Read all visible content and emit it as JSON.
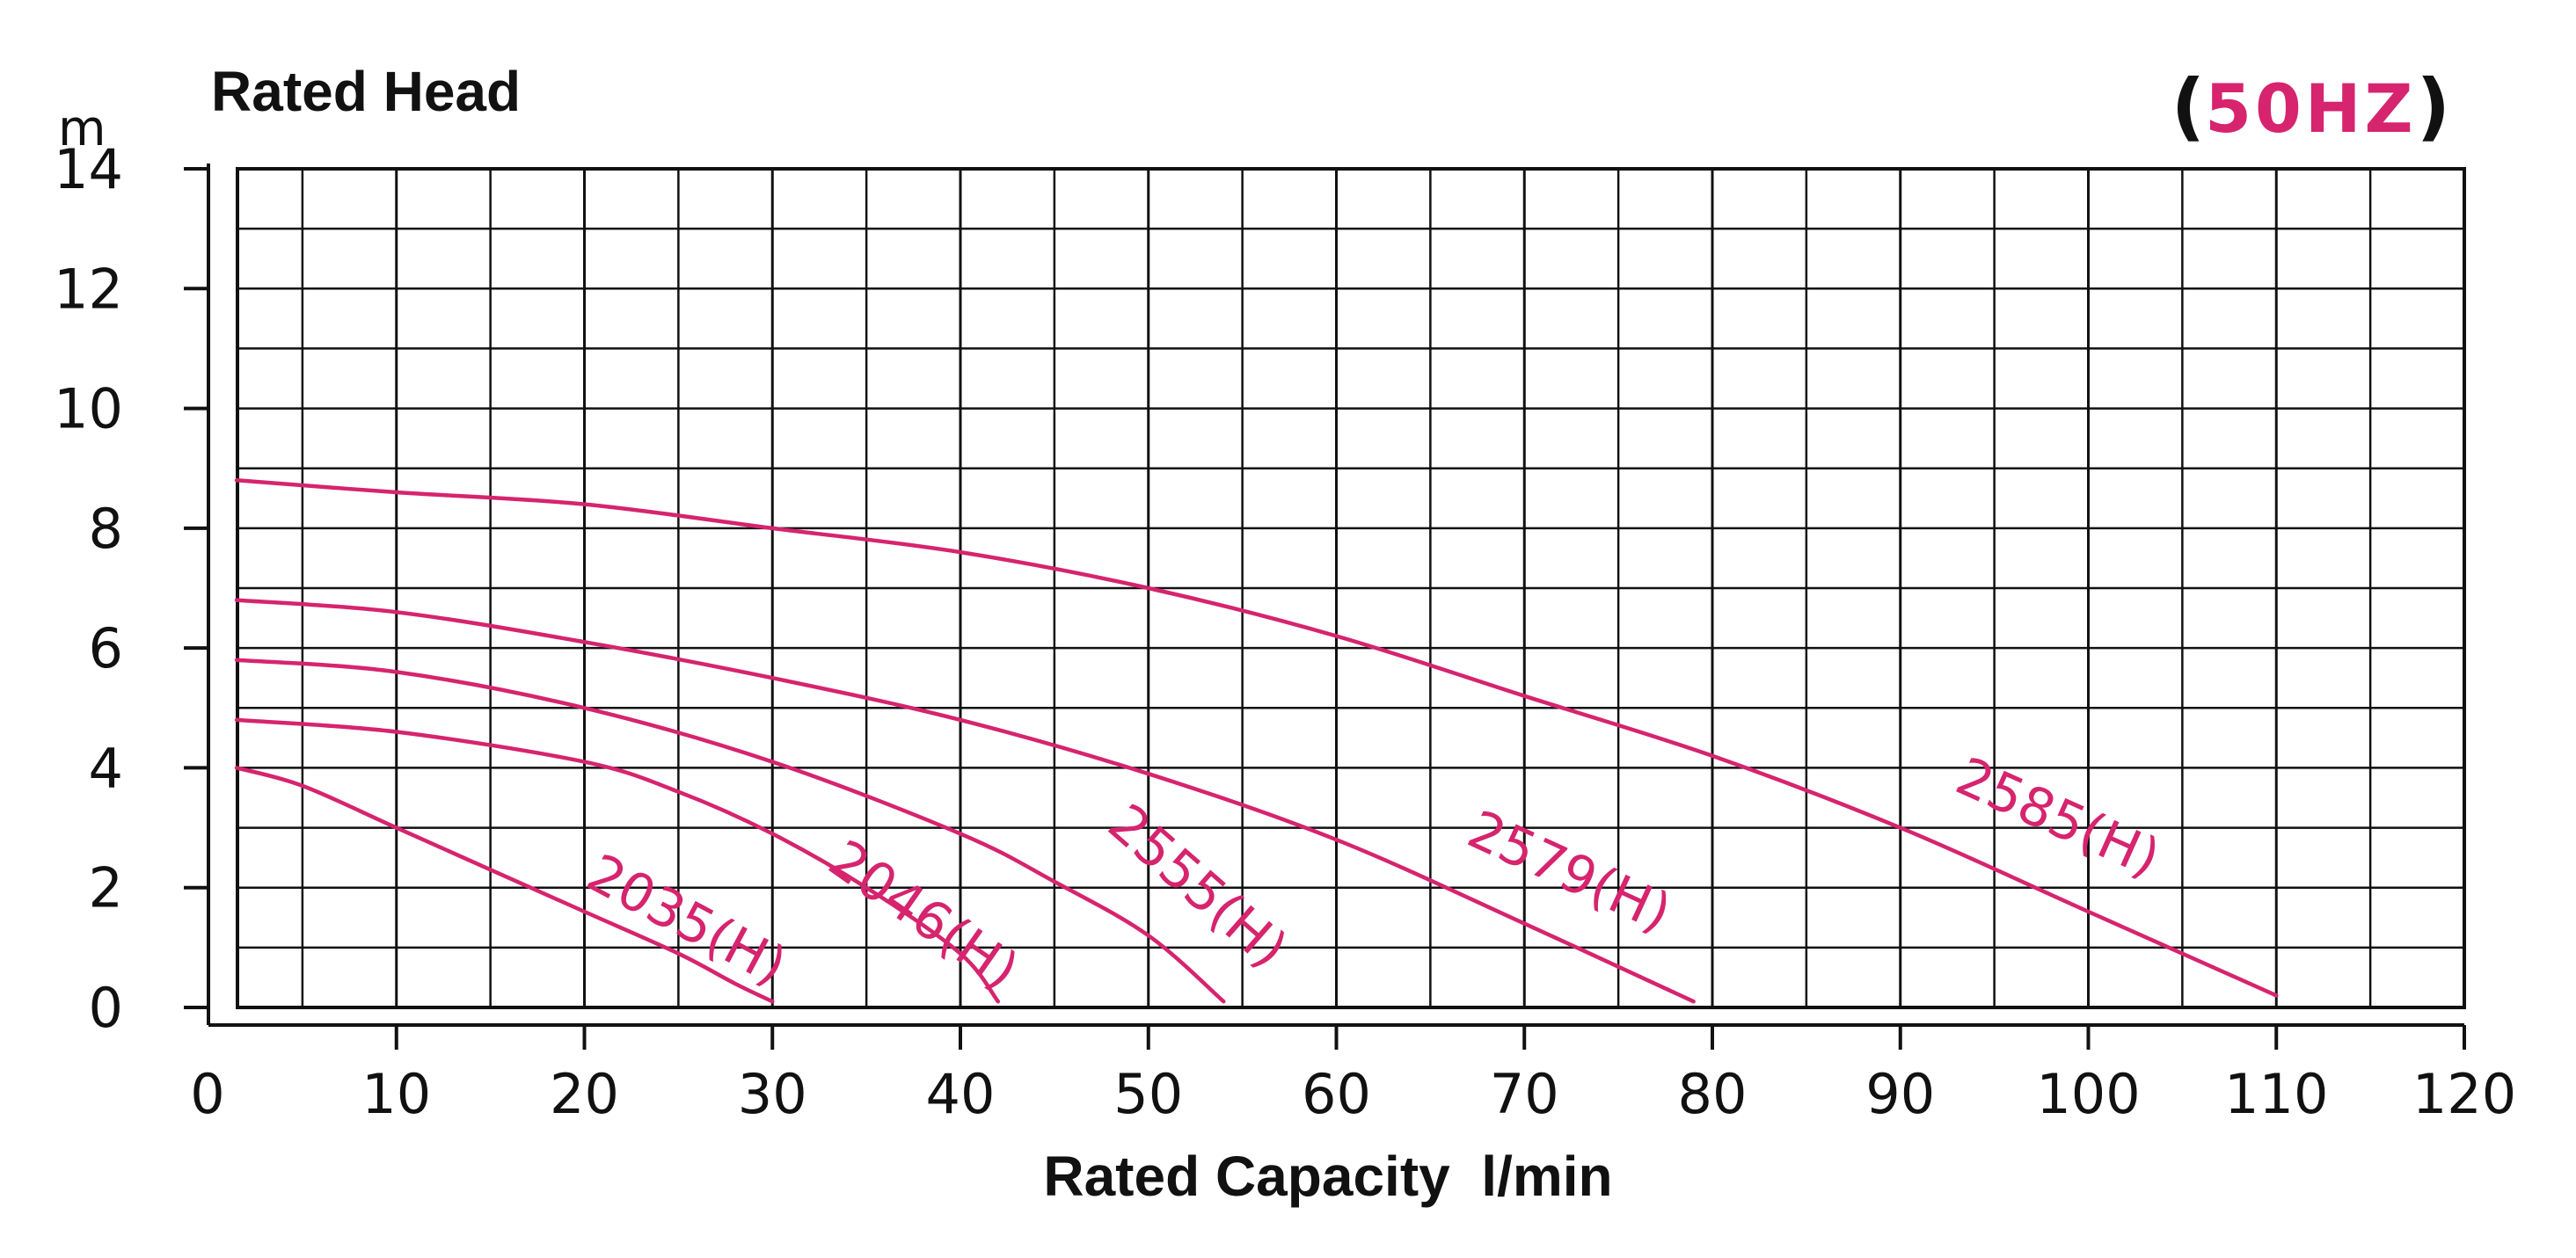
{
  "chart_data": {
    "type": "line",
    "ylabel": "Rated Head",
    "yunit": "m",
    "xlabel": "Rated Capacity  l/min",
    "annotation": {
      "paren_open": "(",
      "freq": "50HZ",
      "paren_close": ")"
    },
    "xlim": [
      0,
      120
    ],
    "ylim": [
      0,
      14
    ],
    "x_ticks": [
      0,
      10,
      20,
      30,
      40,
      50,
      60,
      70,
      80,
      90,
      100,
      110,
      120
    ],
    "y_ticks": [
      0,
      2,
      4,
      6,
      8,
      10,
      12,
      14
    ],
    "grid": true,
    "curve_color": "#d6246e",
    "grid_color": "#111111",
    "series": [
      {
        "name": "2035(H)",
        "x": [
          1.5,
          5,
          10,
          15,
          20,
          25,
          28,
          30
        ],
        "y": [
          4.0,
          3.7,
          3.0,
          2.3,
          1.6,
          0.9,
          0.4,
          0.1
        ],
        "label_at": [
          25,
          1.2
        ]
      },
      {
        "name": "2046(H)",
        "x": [
          1.5,
          10,
          20,
          25,
          30,
          35,
          40,
          42
        ],
        "y": [
          4.8,
          4.6,
          4.1,
          3.6,
          2.9,
          2.0,
          0.9,
          0.1
        ],
        "label_at": [
          37.5,
          1.3
        ]
      },
      {
        "name": "2555(H)",
        "x": [
          1.5,
          10,
          20,
          30,
          40,
          45,
          50,
          54
        ],
        "y": [
          5.8,
          5.6,
          5.0,
          4.1,
          2.9,
          2.1,
          1.2,
          0.1
        ],
        "label_at": [
          52,
          1.8
        ]
      },
      {
        "name": "2579(H)",
        "x": [
          1.5,
          10,
          20,
          30,
          40,
          50,
          60,
          70,
          79
        ],
        "y": [
          6.8,
          6.6,
          6.1,
          5.5,
          4.8,
          3.9,
          2.8,
          1.4,
          0.1
        ],
        "label_at": [
          72,
          2.0
        ]
      },
      {
        "name": "2585(H)",
        "x": [
          1.5,
          10,
          20,
          30,
          40,
          50,
          60,
          70,
          80,
          90,
          100,
          110
        ],
        "y": [
          8.8,
          8.6,
          8.4,
          8.0,
          7.6,
          7.0,
          6.2,
          5.2,
          4.2,
          3.0,
          1.6,
          0.2
        ],
        "label_at": [
          98,
          2.9
        ]
      }
    ]
  }
}
